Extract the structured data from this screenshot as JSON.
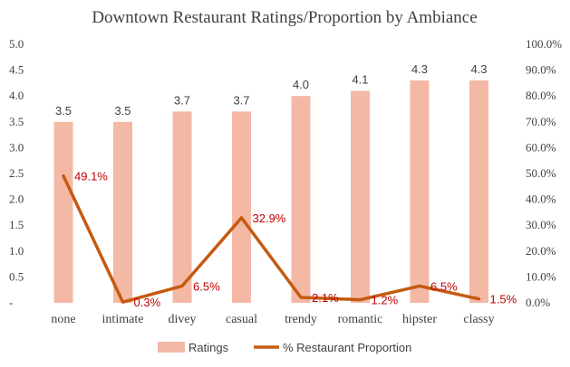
{
  "chart_data": {
    "type": "bar",
    "title": "Downtown Restaurant Ratings/Proportion by Ambiance",
    "categories": [
      "none",
      "intimate",
      "divey",
      "casual",
      "trendy",
      "romantic",
      "hipster",
      "classy"
    ],
    "series": [
      {
        "name": "Ratings",
        "type": "bar",
        "axis": "left",
        "values": [
          3.5,
          3.5,
          3.7,
          3.7,
          4.0,
          4.1,
          4.3,
          4.3
        ],
        "labels": [
          "3.5",
          "3.5",
          "3.7",
          "3.7",
          "4.0",
          "4.1",
          "4.3",
          "4.3"
        ],
        "color": "#f4b9a5"
      },
      {
        "name": "% Restaurant Proportion",
        "type": "line",
        "axis": "right",
        "values": [
          49.1,
          0.3,
          6.5,
          32.9,
          2.1,
          1.2,
          6.5,
          1.5
        ],
        "labels": [
          "49.1%",
          "0.3%",
          "6.5%",
          "32.9%",
          "2.1%",
          "1.2%",
          "6.5%",
          "1.5%"
        ],
        "color": "#c55a11",
        "label_color": "#c00000"
      }
    ],
    "y_left": {
      "range": [
        0,
        5
      ],
      "ticks": [
        "-",
        "0.5",
        "1.0",
        "1.5",
        "2.0",
        "2.5",
        "3.0",
        "3.5",
        "4.0",
        "4.5",
        "5.0"
      ]
    },
    "y_right": {
      "range": [
        0,
        100
      ],
      "ticks": [
        "0.0%",
        "10.0%",
        "20.0%",
        "30.0%",
        "40.0%",
        "50.0%",
        "60.0%",
        "70.0%",
        "80.0%",
        "90.0%",
        "100.0%"
      ]
    },
    "grid": false,
    "legend": "bottom"
  }
}
